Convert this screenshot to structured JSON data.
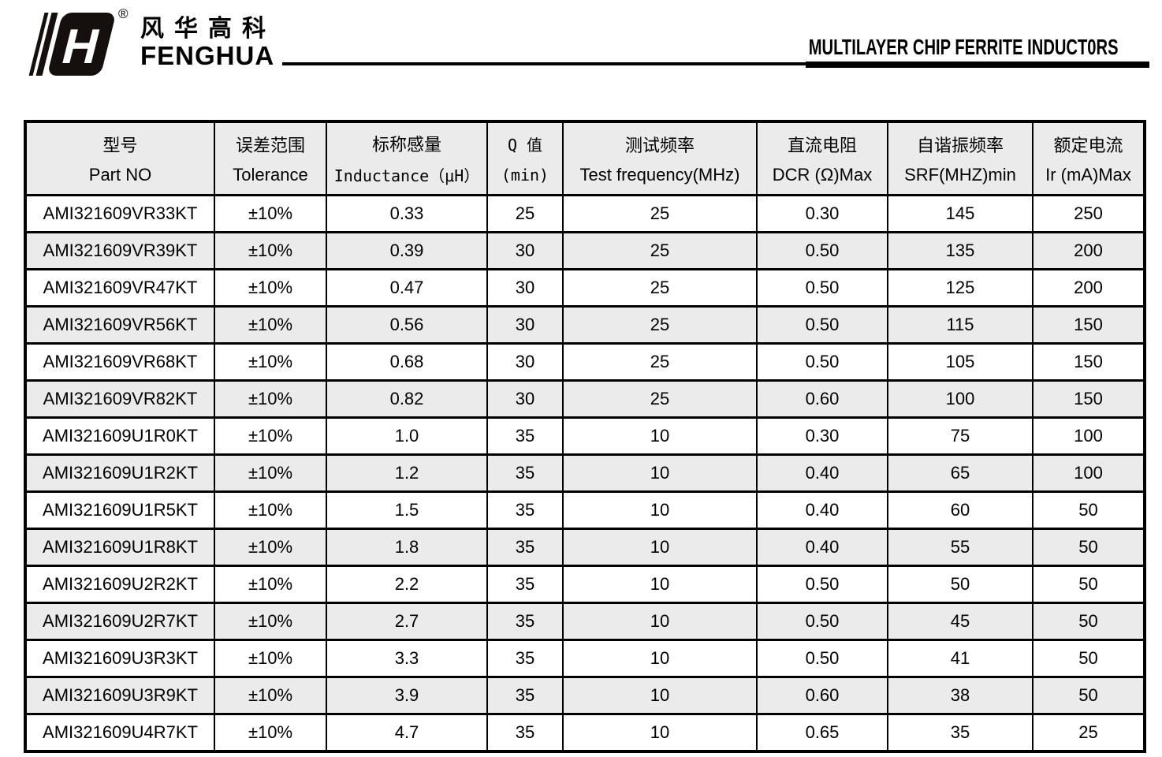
{
  "colors": {
    "row_shade": "#ebebeb",
    "border": "#000000",
    "text": "#000000"
  },
  "brand": {
    "name_zh": "风华高科",
    "name_en": "FENGHUA",
    "registered": "®"
  },
  "page_title": "MULTILAYER CHIP FERRITE INDUCT0RS",
  "table": {
    "columns": [
      {
        "zh": "型号",
        "en": "Part NO"
      },
      {
        "zh": "误差范围",
        "en": "Tolerance"
      },
      {
        "zh": "标称感量",
        "en": "Inductance（μH）"
      },
      {
        "zh": "Q 值",
        "en": "(min)"
      },
      {
        "zh": "测试频率",
        "en": "Test frequency(MHz)"
      },
      {
        "zh": "直流电阻",
        "en": "DCR (Ω)Max"
      },
      {
        "zh": "自谐振频率",
        "en": "SRF(MHZ)min"
      },
      {
        "zh": "额定电流",
        "en": "Ir (mA)Max"
      }
    ],
    "rows": [
      [
        "AMI321609VR33KT",
        "±10%",
        "0.33",
        "25",
        "25",
        "0.30",
        "145",
        "250"
      ],
      [
        "AMI321609VR39KT",
        "±10%",
        "0.39",
        "30",
        "25",
        "0.50",
        "135",
        "200"
      ],
      [
        "AMI321609VR47KT",
        "±10%",
        "0.47",
        "30",
        "25",
        "0.50",
        "125",
        "200"
      ],
      [
        "AMI321609VR56KT",
        "±10%",
        "0.56",
        "30",
        "25",
        "0.50",
        "115",
        "150"
      ],
      [
        "AMI321609VR68KT",
        "±10%",
        "0.68",
        "30",
        "25",
        "0.50",
        "105",
        "150"
      ],
      [
        "AMI321609VR82KT",
        "±10%",
        "0.82",
        "30",
        "25",
        "0.60",
        "100",
        "150"
      ],
      [
        "AMI321609U1R0KT",
        "±10%",
        "1.0",
        "35",
        "10",
        "0.30",
        "75",
        "100"
      ],
      [
        "AMI321609U1R2KT",
        "±10%",
        "1.2",
        "35",
        "10",
        "0.40",
        "65",
        "100"
      ],
      [
        "AMI321609U1R5KT",
        "±10%",
        "1.5",
        "35",
        "10",
        "0.40",
        "60",
        "50"
      ],
      [
        "AMI321609U1R8KT",
        "±10%",
        "1.8",
        "35",
        "10",
        "0.40",
        "55",
        "50"
      ],
      [
        "AMI321609U2R2KT",
        "±10%",
        "2.2",
        "35",
        "10",
        "0.50",
        "50",
        "50"
      ],
      [
        "AMI321609U2R7KT",
        "±10%",
        "2.7",
        "35",
        "10",
        "0.50",
        "45",
        "50"
      ],
      [
        "AMI321609U3R3KT",
        "±10%",
        "3.3",
        "35",
        "10",
        "0.50",
        "41",
        "50"
      ],
      [
        "AMI321609U3R9KT",
        "±10%",
        "3.9",
        "35",
        "10",
        "0.60",
        "38",
        "50"
      ],
      [
        "AMI321609U4R7KT",
        "±10%",
        "4.7",
        "35",
        "10",
        "0.65",
        "35",
        "25"
      ]
    ]
  }
}
